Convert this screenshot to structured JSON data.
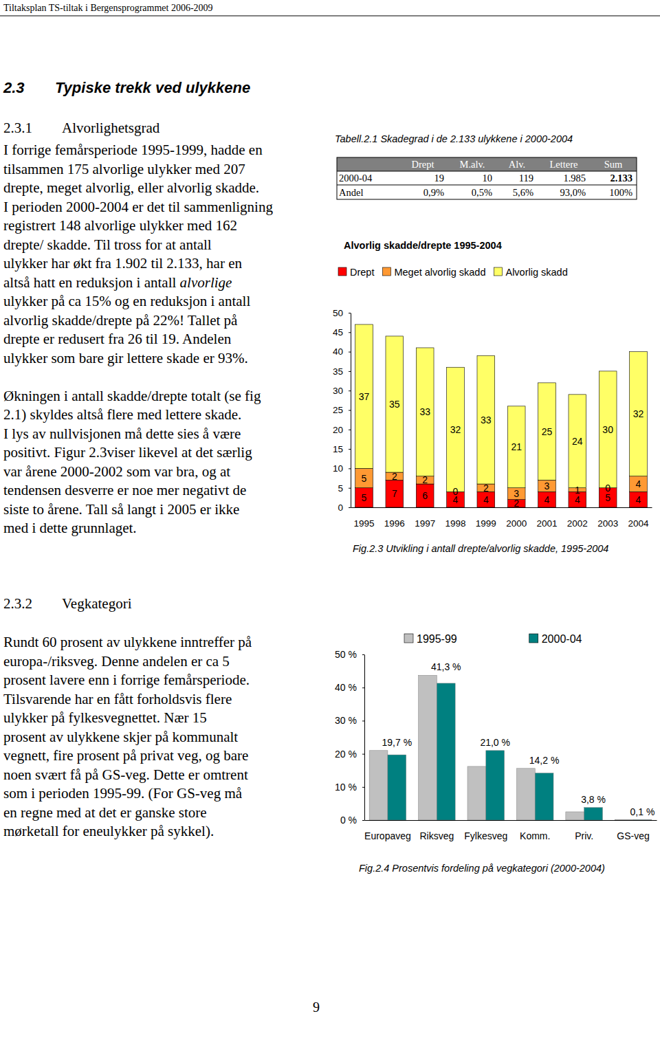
{
  "header": {
    "title": "Tiltaksplan TS-tiltak i Bergensprogrammet 2006-2009"
  },
  "section": {
    "number": "2.3",
    "title": "Typiske trekk ved ulykkene"
  },
  "subsections": [
    {
      "number": "2.3.1",
      "title": "Alvorlighetsgrad",
      "paragraphs": [
        [
          "I forrige femårsperiode 1995-1999, hadde en",
          "tilsammen 175 alvorlige ulykker med 207",
          "drepte, meget alvorlig, eller alvorlig skadde.",
          "I perioden 2000-2004 er det til sammenligning",
          "registrert 148 alvorlige ulykker med 162",
          "drepte/ skadde.  Til tross for at antall",
          "ulykker har økt fra 1.902 til 2.133, har en",
          [
            "altså hatt en reduksjon i antall ",
            "alvorlige"
          ],
          "ulykker på ca 15% og en reduksjon i antall",
          "alvorlig skadde/drepte på 22%!  Tallet på",
          "drepte er redusert fra 26 til 19.  Andelen",
          "ulykker som bare gir lettere skade er 93%."
        ],
        [
          "Økningen i antall skadde/drepte totalt (se fig",
          "2.1) skyldes altså flere med lettere skade.",
          "I lys av nullvisjonen må dette sies å være",
          "positivt.  Figur 2.3viser likevel at det særlig",
          "var årene 2000-2002 som var bra, og at",
          "tendensen desverre er noe mer negativt de",
          "siste to årene. Tall så langt i  2005 er ikke",
          "med i dette grunnlaget."
        ]
      ]
    },
    {
      "number": "2.3.2",
      "title": "Vegkategori",
      "paragraphs": [
        [
          "Rundt 60 prosent av ulykkene inntreffer på",
          "europa-/riksveg. Denne andelen er ca 5",
          "prosent lavere enn i forrige femårsperiode.",
          "Tilsvarende har en fått forholdsvis flere",
          "ulykker på fylkesvegnettet.  Nær 15",
          "prosent av ulykkene skjer på kommunalt",
          "vegnett, fire prosent på privat veg, og bare",
          "noen svært få på GS-veg. Dette er omtrent",
          "som i perioden 1995-99.  (For GS-veg må",
          "en regne med at det er ganske store",
          "mørketall for eneulykker på sykkel)."
        ]
      ]
    }
  ],
  "table": {
    "caption": "Tabell.2.1  Skadegrad i de 2.133 ulykkene i 2000-2004",
    "header": [
      "Drept",
      "M.alv.",
      "Alv.",
      "Lettere",
      "Sum"
    ],
    "rows": [
      [
        "2000-04",
        "19",
        "10",
        "119",
        "1.985",
        "2.133"
      ],
      [
        "Andel",
        "0,9%",
        "0,5%",
        "5,6%",
        "93,0%",
        "100%"
      ]
    ]
  },
  "chart_data": [
    {
      "type": "bar",
      "title": "Alvorlig skadde/drepte 1995-2004",
      "caption": "Fig.2.3  Utvikling i antall drepte/alvorlig skadde, 1995-2004",
      "categories": [
        "1995",
        "1996",
        "1997",
        "1998",
        "1999",
        "2000",
        "2001",
        "2002",
        "2003",
        "2004"
      ],
      "series": [
        {
          "name": "Drept",
          "color": "#ff0000",
          "values": [
            5,
            7,
            6,
            4,
            4,
            2,
            4,
            4,
            5,
            4
          ]
        },
        {
          "name": "Meget alvorlig skadd",
          "color": "#ff9933",
          "values": [
            5,
            2,
            2,
            0,
            2,
            3,
            3,
            1,
            0,
            4
          ]
        },
        {
          "name": "Alvorlig skadd",
          "color": "#ffff66",
          "values": [
            37,
            35,
            33,
            32,
            33,
            21,
            25,
            24,
            30,
            32
          ]
        }
      ],
      "stacked": true,
      "data_labels": true,
      "legend": "top",
      "ylim": [
        0,
        50
      ],
      "yticks": [
        0,
        5,
        10,
        15,
        20,
        25,
        30,
        35,
        40,
        45,
        50
      ]
    },
    {
      "type": "bar",
      "caption": "Fig.2.4  Prosentvis fordeling på vegkategori (2000-2004)",
      "categories": [
        "Europaveg",
        "Riksveg",
        "Fylkesveg",
        "Komm.",
        "Priv.",
        "GS-veg"
      ],
      "series": [
        {
          "name": "1995-99",
          "color": "#c0c0c0",
          "values": [
            21.0,
            43.7,
            16.2,
            15.6,
            2.5,
            0.1
          ]
        },
        {
          "name": "2000-04",
          "color": "#008080",
          "values": [
            19.7,
            41.3,
            21.0,
            14.2,
            3.8,
            0.1
          ],
          "value_labels": [
            "19,7 %",
            "41,3 %",
            "21,0 %",
            "14,2 %",
            "3,8 %",
            "0,1 %"
          ]
        }
      ],
      "legend": "top",
      "ylim": [
        0,
        50
      ],
      "yticks": [
        {
          "value": 0,
          "label": "0 %"
        },
        {
          "value": 10,
          "label": "10 %"
        },
        {
          "value": 20,
          "label": "20 %"
        },
        {
          "value": 30,
          "label": "30 %"
        },
        {
          "value": 40,
          "label": "40 %"
        },
        {
          "value": 50,
          "label": "50 %"
        }
      ]
    }
  ],
  "page_number": "9"
}
